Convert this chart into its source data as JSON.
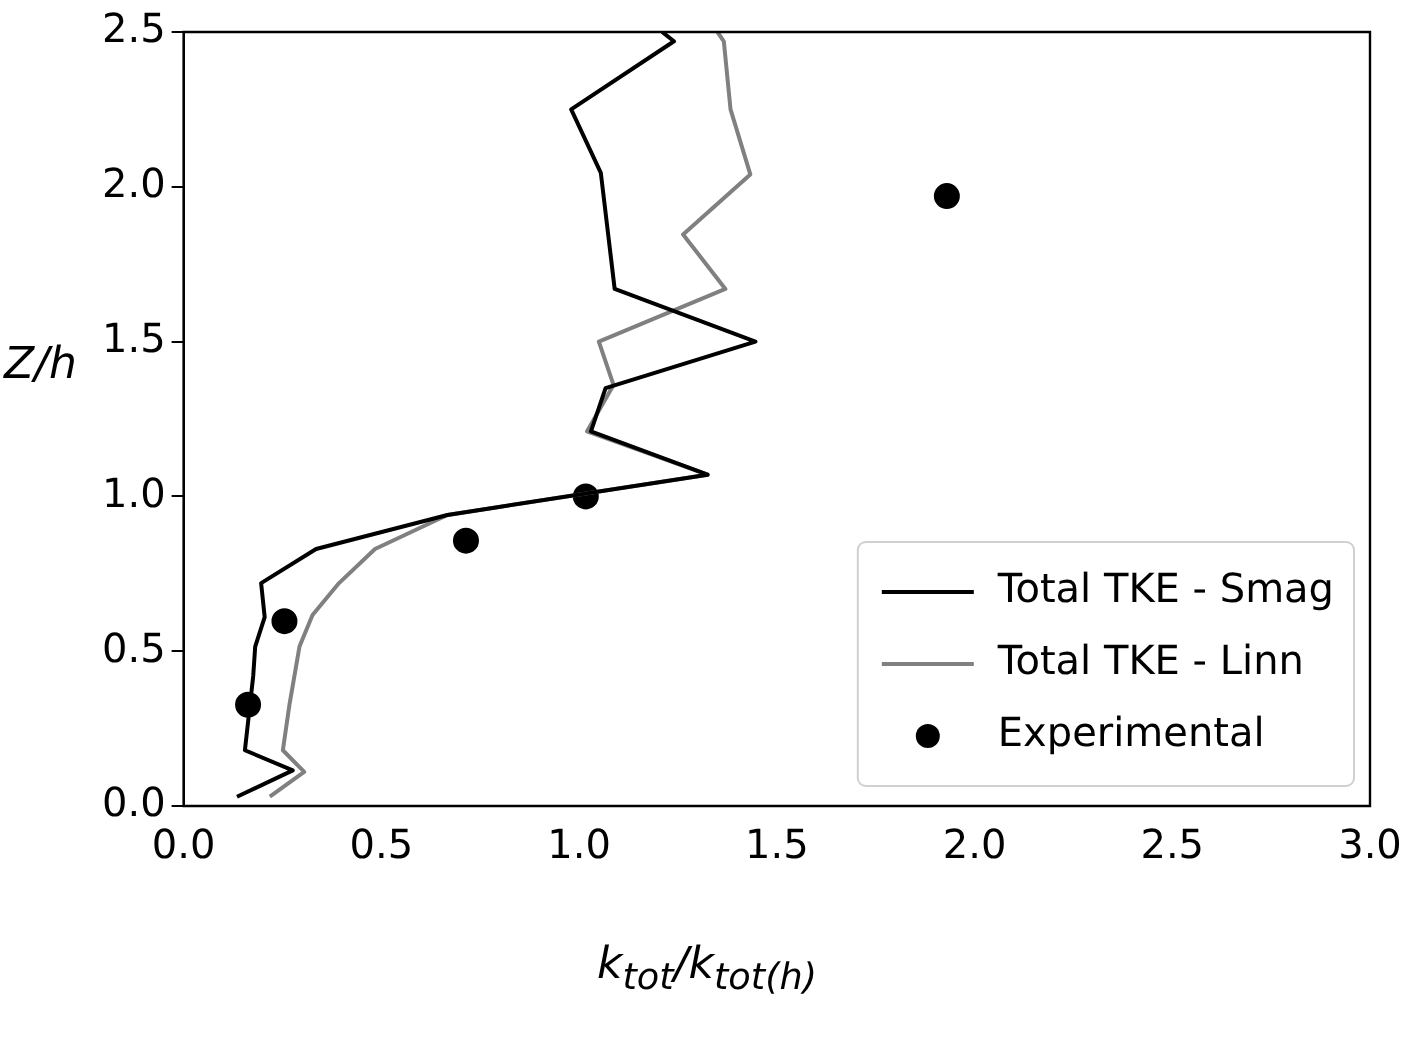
{
  "chart_data": {
    "type": "line",
    "xlabel": "k$_{tot}$/k$_{tot(h)}$",
    "ylabel": "Z/h",
    "xlim": [
      0,
      3
    ],
    "ylim": [
      0,
      2.5
    ],
    "xticks": [
      {
        "value": 0,
        "label": "0.0"
      },
      {
        "value": 0.5,
        "label": "0.5"
      },
      {
        "value": 1,
        "label": "1.0"
      },
      {
        "value": 1.5,
        "label": "1.5"
      },
      {
        "value": 2,
        "label": "2.0"
      },
      {
        "value": 2.5,
        "label": "2.5"
      },
      {
        "value": 3,
        "label": "3.0"
      }
    ],
    "yticks": [
      {
        "value": 0,
        "label": "0.0"
      },
      {
        "value": 0.5,
        "label": "0.5"
      },
      {
        "value": 1,
        "label": "1.0"
      },
      {
        "value": 1.5,
        "label": "1.5"
      },
      {
        "value": 2,
        "label": "2.0"
      },
      {
        "value": 2.5,
        "label": "2.5"
      }
    ],
    "grid": false,
    "legend": "bottom right",
    "series": [
      {
        "name": "Total TKE - Smag",
        "color": "#000000",
        "x": [
          0.135,
          0.276,
          0.155,
          0.176,
          0.181,
          0.205,
          0.196,
          0.335,
          0.667,
          1.325,
          1.03,
          1.067,
          1.446,
          1.09,
          1.055,
          0.98,
          1.24,
          1.21
        ],
        "values": [
          0.03,
          0.115,
          0.18,
          0.42,
          0.515,
          0.61,
          0.72,
          0.83,
          0.94,
          1.07,
          1.21,
          1.35,
          1.5,
          1.67,
          2.045,
          2.25,
          2.47,
          2.5
        ]
      },
      {
        "name": "Total TKE - Linn",
        "color": "#808080",
        "x": [
          0.218,
          0.305,
          0.251,
          0.268,
          0.293,
          0.326,
          0.393,
          0.484,
          0.667,
          1.325,
          1.02,
          1.087,
          1.05,
          1.37,
          1.263,
          1.433,
          1.383,
          1.366,
          1.35
        ],
        "values": [
          0.03,
          0.11,
          0.18,
          0.33,
          0.515,
          0.617,
          0.72,
          0.83,
          0.94,
          1.07,
          1.21,
          1.36,
          1.5,
          1.67,
          1.846,
          2.04,
          2.25,
          2.47,
          2.5
        ]
      },
      {
        "name": "Experimental",
        "color": "#000000",
        "type": "scatter",
        "marker": "circle",
        "x": [
          0.163,
          0.255,
          0.714,
          1.017,
          1.93
        ],
        "values": [
          0.327,
          0.597,
          0.857,
          1.0,
          1.97
        ]
      }
    ]
  }
}
